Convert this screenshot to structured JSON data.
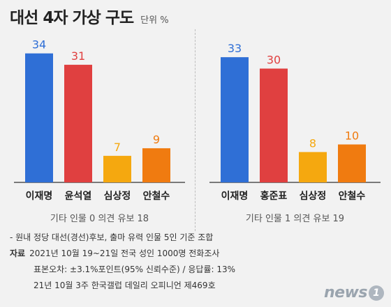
{
  "header": {
    "title": "대선 4자 가상 구도",
    "unit": "단위 %"
  },
  "chart_data": [
    {
      "type": "bar",
      "categories": [
        "이재명",
        "윤석열",
        "심상정",
        "안철수"
      ],
      "values": [
        34,
        31,
        7,
        9
      ],
      "colors": [
        "#2f6fd6",
        "#e04040",
        "#f5a80f",
        "#f07b10"
      ],
      "note": "기타 인물 0 의견 유보 18"
    },
    {
      "type": "bar",
      "categories": [
        "이재명",
        "홍준표",
        "심상정",
        "안철수"
      ],
      "values": [
        33,
        30,
        8,
        10
      ],
      "colors": [
        "#2f6fd6",
        "#e04040",
        "#f5a80f",
        "#f07b10"
      ],
      "note": "기타 인물 1 의견 유보 19"
    }
  ],
  "footer": {
    "line1": "- 원내 정당 대선(경선)후보, 출마 유력 인물 5인 기준 조합",
    "source_label": "자료",
    "line2": "2021년 10월 19~21일 전국 성인 1000명 전화조사",
    "line3": "표본오차: ±3.1%포인트(95% 신뢰수준) / 응답률: 13%",
    "line4": "21년 10월 3주 한국갤럽 데일리 오피니언 제469호"
  },
  "logo": {
    "text": "news",
    "badge": "1"
  }
}
